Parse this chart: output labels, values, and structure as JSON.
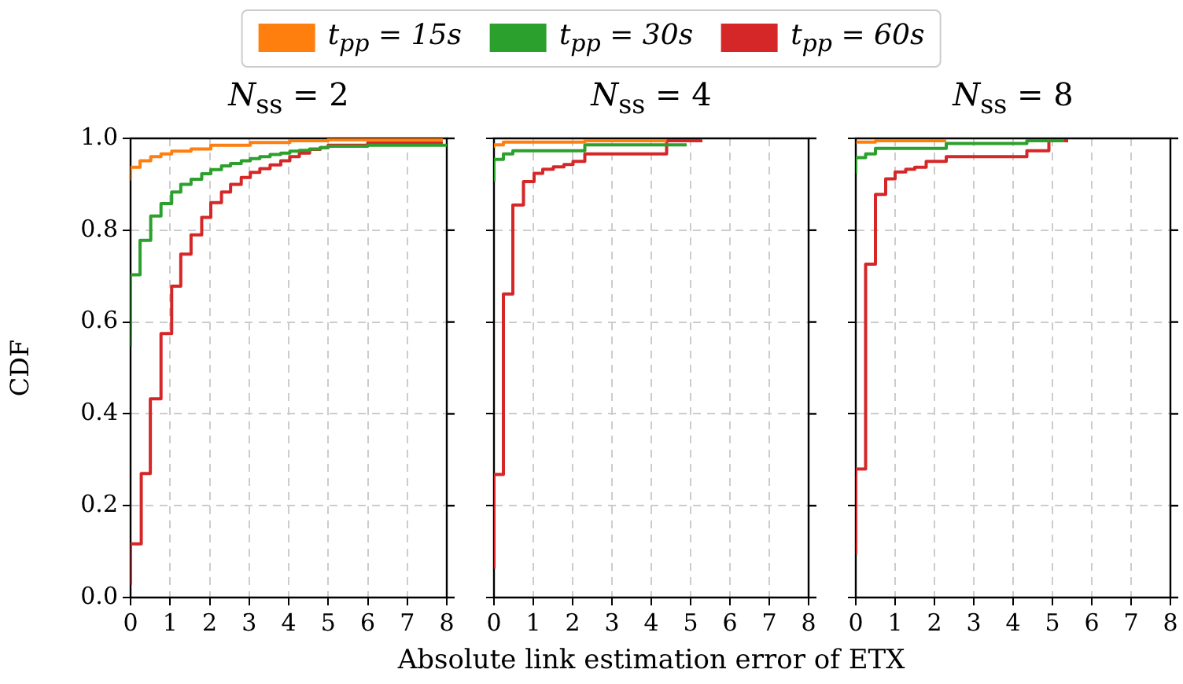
{
  "chart_data": [
    {
      "type": "step",
      "title": "N$_{ss}$ = 2",
      "ylabel": "CDF",
      "xlim": [
        0,
        8
      ],
      "xticks": [
        0,
        1,
        2,
        3,
        4,
        5,
        6,
        7,
        8
      ],
      "ylim": [
        0,
        1
      ],
      "yticks": [
        {
          "value": 0,
          "label": "0.0"
        },
        {
          "value": 0.2,
          "label": "0.2"
        },
        {
          "value": 0.4,
          "label": "0.4"
        },
        {
          "value": 0.6,
          "label": "0.6"
        },
        {
          "value": 0.8,
          "label": "0.8"
        },
        {
          "value": 1,
          "label": "1.0"
        }
      ],
      "grid": true,
      "legend": "top",
      "series": [
        {
          "name": "t$_{pp}$ = 15s",
          "color": "#ff7f0e",
          "x": [
            0,
            0.24,
            0.51,
            0.77,
            1.04,
            1.53,
            2.03,
            3.03,
            4.03,
            5,
            7.9
          ],
          "values": [
            0.908,
            0.937,
            0.951,
            0.96,
            0.966,
            0.972,
            0.977,
            0.985,
            0.991,
            0.995,
            0.997
          ]
        },
        {
          "name": "t$_{pp}$ = 30s",
          "color": "#2ca02c",
          "x": [
            0,
            0.24,
            0.51,
            0.77,
            1.04,
            1.27,
            1.53,
            1.8,
            2.03,
            2.3,
            2.53,
            2.8,
            3.03,
            3.27,
            3.53,
            3.8,
            4.03,
            4.27,
            4.53,
            4.8,
            5,
            6,
            8
          ],
          "values": [
            0.547,
            0.703,
            0.778,
            0.831,
            0.858,
            0.883,
            0.9,
            0.911,
            0.923,
            0.932,
            0.94,
            0.945,
            0.951,
            0.956,
            0.96,
            0.965,
            0.968,
            0.972,
            0.974,
            0.977,
            0.98,
            0.983,
            0.985
          ]
        },
        {
          "name": "t$_{pp}$ = 60s",
          "color": "#d62728",
          "x": [
            0,
            0.27,
            0.5,
            0.77,
            1.04,
            1.27,
            1.53,
            1.8,
            2.03,
            2.3,
            2.53,
            2.8,
            3.03,
            3.27,
            3.53,
            3.8,
            4.03,
            4.27,
            4.53,
            4.8,
            5,
            6,
            7.9
          ],
          "values": [
            0.028,
            0.117,
            0.27,
            0.433,
            0.575,
            0.678,
            0.748,
            0.79,
            0.828,
            0.86,
            0.883,
            0.9,
            0.915,
            0.926,
            0.934,
            0.942,
            0.951,
            0.96,
            0.968,
            0.976,
            0.98,
            0.985,
            0.99
          ]
        }
      ]
    },
    {
      "type": "step",
      "title": "N$_{ss}$ = 4",
      "xlabel": "Absolute link estimation error of ETX",
      "xlim": [
        0,
        8
      ],
      "xticks": [
        0,
        1,
        2,
        3,
        4,
        5,
        6,
        7,
        8
      ],
      "ylim": [
        0,
        1
      ],
      "yticks": [
        0,
        0.2,
        0.4,
        0.6,
        0.8,
        1
      ],
      "grid": true,
      "tick_labels": "x",
      "series": [
        {
          "color": "#ff7f0e",
          "x": [
            0,
            0.24,
            2.31,
            4.39
          ],
          "values": [
            0.98,
            0.986,
            0.992,
            0.995
          ]
        },
        {
          "color": "#2ca02c",
          "x": [
            0,
            0.24,
            0.48,
            2.31,
            4.39,
            4.9
          ],
          "values": [
            0.906,
            0.954,
            0.966,
            0.973,
            0.986,
            0.986
          ]
        },
        {
          "color": "#d62728",
          "x": [
            0,
            0.24,
            0.48,
            0.75,
            1.02,
            1.24,
            1.51,
            1.78,
            2.01,
            2.31,
            4.39,
            4.9,
            5.3
          ],
          "values": [
            0.063,
            0.268,
            0.661,
            0.855,
            0.906,
            0.924,
            0.933,
            0.938,
            0.943,
            0.95,
            0.966,
            0.995,
            0.995
          ]
        }
      ]
    },
    {
      "type": "step",
      "title": "N$_{ss}$ = 8",
      "xlim": [
        0,
        8
      ],
      "xticks": [
        0,
        1,
        2,
        3,
        4,
        5,
        6,
        7,
        8
      ],
      "ylim": [
        0,
        1
      ],
      "yticks": [
        0,
        0.2,
        0.4,
        0.6,
        0.8,
        1
      ],
      "grid": true,
      "tick_labels": "x",
      "series": [
        {
          "color": "#ff7f0e",
          "x": [
            0.05,
            0.5,
            2.3
          ],
          "values": [
            0.989,
            0.992,
            0.995
          ]
        },
        {
          "color": "#2ca02c",
          "x": [
            0,
            0.25,
            0.5,
            2.3,
            4.35,
            4.91,
            5.3
          ],
          "values": [
            0.924,
            0.958,
            0.966,
            0.978,
            0.989,
            0.995,
            0.995
          ]
        },
        {
          "color": "#d62728",
          "x": [
            0,
            0.25,
            0.5,
            0.76,
            1,
            1.27,
            1.5,
            1.79,
            2.3,
            4.35,
            4.91,
            5,
            5.4
          ],
          "values": [
            0.094,
            0.28,
            0.726,
            0.878,
            0.912,
            0.927,
            0.933,
            0.937,
            0.95,
            0.96,
            0.973,
            0.995,
            0.995
          ]
        }
      ]
    }
  ]
}
